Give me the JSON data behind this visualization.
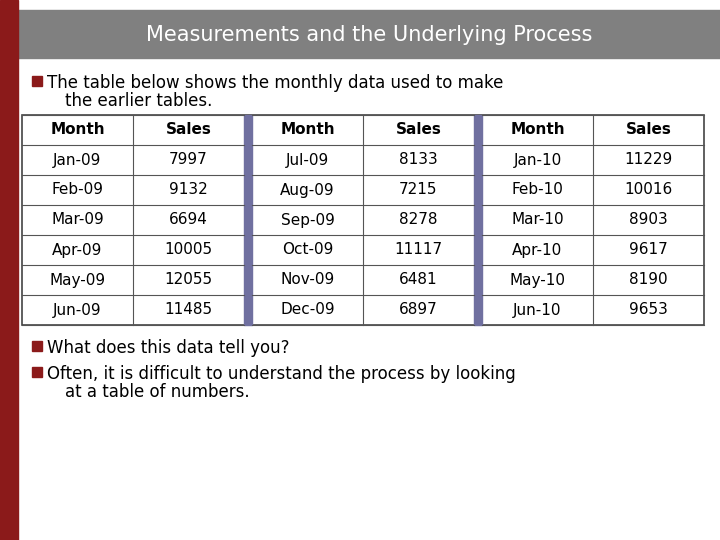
{
  "title": "Measurements and the Underlying Process",
  "title_bg": "#808080",
  "title_color": "#ffffff",
  "left_bar_color": "#8b1a1a",
  "separator_color": "#7070a0",
  "background_color": "#ffffff",
  "bullet_color": "#8b1a1a",
  "text1_line1": "The table below shows the monthly data used to make",
  "text1_line2": "the earlier tables.",
  "text2": "What does this data tell you?",
  "text3_line1": "Often, it is difficult to understand the process by looking",
  "text3_line2": "at a table of numbers.",
  "table_headers": [
    "Month",
    "Sales",
    "Month",
    "Sales",
    "Month",
    "Sales"
  ],
  "table_rows": [
    [
      "Jan-09",
      "7997",
      "Jul-09",
      "8133",
      "Jan-10",
      "11229"
    ],
    [
      "Feb-09",
      "9132",
      "Aug-09",
      "7215",
      "Feb-10",
      "10016"
    ],
    [
      "Mar-09",
      "6694",
      "Sep-09",
      "8278",
      "Mar-10",
      "8903"
    ],
    [
      "Apr-09",
      "10005",
      "Oct-09",
      "11117",
      "Apr-10",
      "9617"
    ],
    [
      "May-09",
      "12055",
      "Nov-09",
      "6481",
      "May-10",
      "8190"
    ],
    [
      "Jun-09",
      "11485",
      "Dec-09",
      "6897",
      "Jun-10",
      "9653"
    ]
  ],
  "figw": 7.2,
  "figh": 5.4,
  "dpi": 100
}
